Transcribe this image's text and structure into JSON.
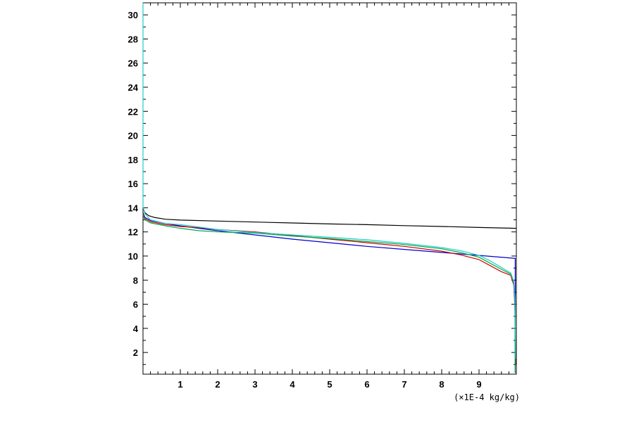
{
  "chart_data": {
    "type": "line",
    "title": "",
    "xlabel": "",
    "ylabel": "",
    "x_unit_label": "(×1E-4 kg/kg)",
    "xlim": [
      0,
      10
    ],
    "ylim": [
      0.2,
      31
    ],
    "x_ticks": [
      1,
      2,
      3,
      4,
      5,
      6,
      7,
      8,
      9
    ],
    "y_ticks": [
      2,
      4,
      6,
      8,
      10,
      12,
      14,
      16,
      18,
      20,
      22,
      24,
      26,
      28,
      30
    ],
    "grid": false,
    "series": [
      {
        "color": "#000000",
        "points": [
          [
            0.0,
            14.0
          ],
          [
            0.05,
            13.6
          ],
          [
            0.15,
            13.35
          ],
          [
            0.3,
            13.2
          ],
          [
            0.6,
            13.05
          ],
          [
            1,
            12.98
          ],
          [
            2,
            12.9
          ],
          [
            3,
            12.82
          ],
          [
            4,
            12.74
          ],
          [
            5,
            12.66
          ],
          [
            6,
            12.6
          ],
          [
            7,
            12.52
          ],
          [
            8,
            12.45
          ],
          [
            9,
            12.37
          ],
          [
            10,
            12.3
          ]
        ]
      },
      {
        "color": "#0000cc",
        "points": [
          [
            0.0,
            13.6
          ],
          [
            0.05,
            13.2
          ],
          [
            0.2,
            12.95
          ],
          [
            0.6,
            12.7
          ],
          [
            1,
            12.5
          ],
          [
            1.5,
            12.3
          ],
          [
            2,
            12.1
          ],
          [
            3,
            11.75
          ],
          [
            4,
            11.4
          ],
          [
            5,
            11.1
          ],
          [
            6,
            10.8
          ],
          [
            7,
            10.55
          ],
          [
            8,
            10.3
          ],
          [
            9,
            10.05
          ],
          [
            9.97,
            9.8
          ],
          [
            9.97,
            0.3
          ]
        ]
      },
      {
        "color": "#cc0000",
        "points": [
          [
            0.0,
            13.5
          ],
          [
            0.05,
            13.1
          ],
          [
            0.2,
            12.85
          ],
          [
            0.6,
            12.6
          ],
          [
            1,
            12.45
          ],
          [
            1.5,
            12.35
          ],
          [
            2,
            12.2
          ],
          [
            3,
            12.0
          ],
          [
            4,
            11.7
          ],
          [
            5,
            11.4
          ],
          [
            6,
            11.1
          ],
          [
            7,
            10.8
          ],
          [
            8,
            10.4
          ],
          [
            8.5,
            10.1
          ],
          [
            9,
            9.7
          ],
          [
            9.3,
            9.2
          ],
          [
            9.6,
            8.7
          ],
          [
            9.85,
            8.4
          ],
          [
            9.93,
            7.6
          ],
          [
            9.96,
            5.8
          ],
          [
            9.98,
            1.0
          ]
        ]
      },
      {
        "color": "#00aa44",
        "points": [
          [
            0.0,
            13.4
          ],
          [
            0.05,
            13.0
          ],
          [
            0.2,
            12.75
          ],
          [
            0.6,
            12.5
          ],
          [
            1,
            12.3
          ],
          [
            1.5,
            12.1
          ],
          [
            2,
            12.0
          ],
          [
            3,
            11.9
          ],
          [
            4,
            11.65
          ],
          [
            5,
            11.45
          ],
          [
            6,
            11.2
          ],
          [
            7,
            10.95
          ],
          [
            8,
            10.6
          ],
          [
            8.5,
            10.3
          ],
          [
            9,
            9.9
          ],
          [
            9.3,
            9.4
          ],
          [
            9.6,
            8.9
          ],
          [
            9.85,
            8.5
          ],
          [
            9.93,
            7.8
          ],
          [
            9.96,
            6.2
          ],
          [
            9.97,
            0.4
          ]
        ]
      },
      {
        "color": "#22cccc",
        "points": [
          [
            0.0,
            31
          ],
          [
            0.0,
            14.1
          ],
          [
            0.05,
            13.5
          ],
          [
            0.2,
            13.0
          ],
          [
            0.6,
            12.7
          ],
          [
            1,
            12.6
          ],
          [
            1.5,
            12.4
          ],
          [
            2,
            12.2
          ],
          [
            3,
            11.95
          ],
          [
            4,
            11.75
          ],
          [
            5,
            11.55
          ],
          [
            6,
            11.35
          ],
          [
            7,
            11.05
          ],
          [
            8,
            10.7
          ],
          [
            8.5,
            10.45
          ],
          [
            9,
            10.05
          ],
          [
            9.3,
            9.6
          ],
          [
            9.6,
            9.05
          ],
          [
            9.85,
            8.6
          ],
          [
            9.93,
            7.9
          ],
          [
            9.96,
            6.5
          ],
          [
            9.98,
            1.5
          ]
        ]
      }
    ]
  }
}
